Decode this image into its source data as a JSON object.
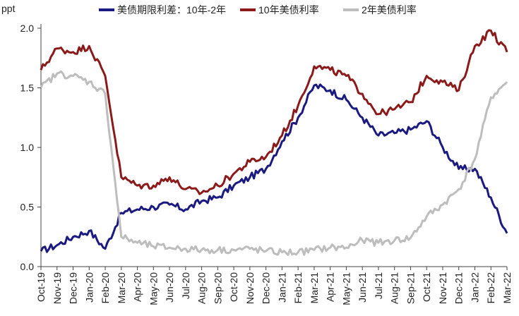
{
  "chart_data": {
    "type": "line",
    "ylabel": "ppt",
    "ylim": [
      0,
      2.0
    ],
    "yticks": [
      "0.0",
      "0.5",
      "1.0",
      "1.5",
      "2.0"
    ],
    "ytick_values": [
      0,
      0.5,
      1.0,
      1.5,
      2.0
    ],
    "categories": [
      "Oct-19",
      "Nov-19",
      "Dec-19",
      "Jan-20",
      "Feb-20",
      "Mar-20",
      "Apr-20",
      "May-20",
      "Jun-20",
      "Jul-20",
      "Aug-20",
      "Sep-20",
      "Oct-20",
      "Nov-20",
      "Dec-20",
      "Jan-21",
      "Feb-21",
      "Mar-21",
      "Apr-21",
      "May-21",
      "Jun-21",
      "Jul-21",
      "Aug-21",
      "Sep-21",
      "Oct-21",
      "Nov-21",
      "Dec-21",
      "Jan-22",
      "Feb-22",
      "Mar-22"
    ],
    "legend_position": "top",
    "series": [
      {
        "name": "美债期限利差：10年-2年",
        "color": "#1a1a80",
        "values": [
          0.13,
          0.18,
          0.25,
          0.3,
          0.15,
          0.45,
          0.48,
          0.5,
          0.52,
          0.48,
          0.55,
          0.58,
          0.68,
          0.75,
          0.82,
          1.05,
          1.25,
          1.52,
          1.48,
          1.4,
          1.25,
          1.1,
          1.12,
          1.15,
          1.22,
          1.0,
          0.82,
          0.82,
          0.58,
          0.28
        ]
      },
      {
        "name": "10年美债利率",
        "color": "#8b1a1a",
        "values": [
          1.65,
          1.83,
          1.8,
          1.85,
          1.6,
          0.75,
          0.68,
          0.68,
          0.75,
          0.65,
          0.62,
          0.68,
          0.78,
          0.88,
          0.92,
          1.1,
          1.35,
          1.68,
          1.65,
          1.6,
          1.45,
          1.28,
          1.32,
          1.38,
          1.6,
          1.55,
          1.48,
          1.85,
          1.98,
          1.8
        ]
      },
      {
        "name": "2年美债利率",
        "color": "#bdbdbd",
        "values": [
          1.5,
          1.62,
          1.6,
          1.55,
          1.45,
          0.25,
          0.2,
          0.17,
          0.16,
          0.15,
          0.14,
          0.14,
          0.14,
          0.15,
          0.13,
          0.12,
          0.12,
          0.14,
          0.16,
          0.16,
          0.22,
          0.2,
          0.22,
          0.24,
          0.42,
          0.52,
          0.65,
          0.9,
          1.42,
          1.55
        ]
      }
    ]
  }
}
